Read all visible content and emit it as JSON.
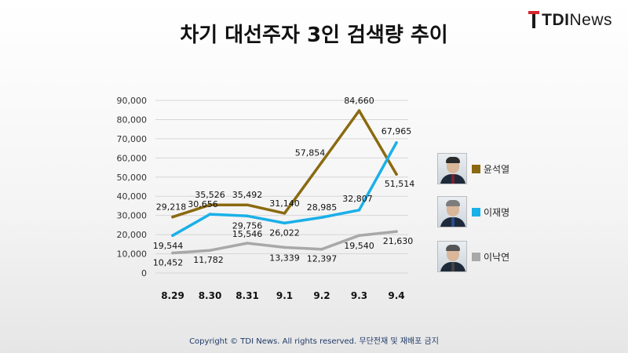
{
  "header": {
    "title": "차기 대선주자 3인 검색량 추이",
    "logo": {
      "mark": "T",
      "bold": "TDI",
      "rest": "News"
    }
  },
  "footer": {
    "copyright": "Copyright © TDI News. All rights reserved. 무단전재 및 재배포 금지"
  },
  "colors": {
    "yoon": "#8a6a10",
    "lee_jm": "#1ab0e8",
    "lee_ny": "#a8a8a8",
    "grid": "#d6d6d6"
  },
  "legend": [
    {
      "name": "윤석열",
      "color": "#8a6a10",
      "icon": "portrait-icon"
    },
    {
      "name": "이재명",
      "color": "#1ab0e8",
      "icon": "portrait-icon"
    },
    {
      "name": "이낙연",
      "color": "#a8a8a8",
      "icon": "portrait-icon"
    }
  ],
  "chart_data": {
    "type": "line",
    "title": "차기 대선주자 3인 검색량 추이",
    "categories": [
      "8.29",
      "8.30",
      "8.31",
      "9.1",
      "9.2",
      "9.3",
      "9.4"
    ],
    "ylim": [
      0,
      90000
    ],
    "yticks": [
      0,
      10000,
      20000,
      30000,
      40000,
      50000,
      60000,
      70000,
      80000,
      90000
    ],
    "ytick_labels": [
      "0",
      "10,000",
      "20,000",
      "30,000",
      "40,000",
      "50,000",
      "60,000",
      "70,000",
      "80,000",
      "90,000"
    ],
    "grid": true,
    "legend_position": "right",
    "series": [
      {
        "name": "윤석열",
        "color": "#8a6a10",
        "values": [
          29218,
          35526,
          35492,
          31140,
          57854,
          84660,
          51514
        ],
        "labels": [
          "29,218",
          "35,526",
          "35,492",
          "31,140",
          "57,854",
          "84,660",
          "51,514"
        ]
      },
      {
        "name": "이재명",
        "color": "#1ab0e8",
        "values": [
          19544,
          30656,
          29756,
          26022,
          28985,
          32807,
          67965
        ],
        "labels": [
          "19,544",
          "30,656",
          "29,756",
          "26,022",
          "28,985",
          "32,807",
          "67,965"
        ]
      },
      {
        "name": "이낙연",
        "color": "#a8a8a8",
        "values": [
          10452,
          11782,
          15546,
          13339,
          12397,
          19540,
          21630
        ],
        "labels": [
          "10,452",
          "11,782",
          "15,546",
          "13,339",
          "12,397",
          "19,540",
          "21,630"
        ]
      }
    ]
  }
}
